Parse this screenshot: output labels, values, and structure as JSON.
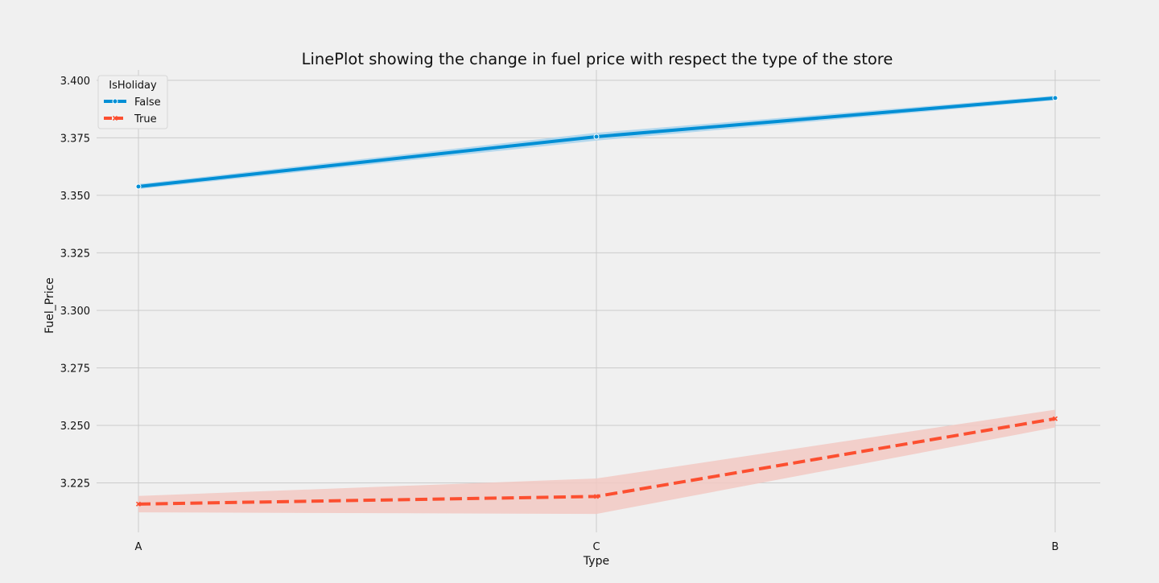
{
  "chart_data": {
    "type": "line",
    "title": "LinePlot showing the change in fuel price with respect the type of the store",
    "xlabel": "Type",
    "ylabel": "Fuel_Price",
    "categories": [
      "A",
      "C",
      "B"
    ],
    "ylim": [
      3.2035,
      3.4045
    ],
    "yticks": [
      3.225,
      3.25,
      3.275,
      3.3,
      3.325,
      3.35,
      3.375,
      3.4
    ],
    "ytick_labels": [
      "3.225",
      "3.250",
      "3.275",
      "3.300",
      "3.325",
      "3.350",
      "3.375",
      "3.400"
    ],
    "grid": true,
    "legend": {
      "title": "IsHoliday",
      "placement": "top-left"
    },
    "series": [
      {
        "name": "False",
        "values": [
          3.3538,
          3.3755,
          3.3923
        ],
        "ci_low": [
          3.3527,
          3.3738,
          3.3913
        ],
        "ci_high": [
          3.3549,
          3.3772,
          3.3933
        ],
        "color": "#008fd5",
        "band_color": "#a9d3ec",
        "marker": "circle",
        "dash": "solid"
      },
      {
        "name": "True",
        "values": [
          3.2158,
          3.2191,
          3.2529
        ],
        "ci_low": [
          3.2122,
          3.2115,
          3.2491
        ],
        "ci_high": [
          3.2193,
          3.2269,
          3.2568
        ],
        "color": "#fc4f30",
        "band_color": "#f2c9c3",
        "marker": "x",
        "dash": "dashed"
      }
    ]
  }
}
